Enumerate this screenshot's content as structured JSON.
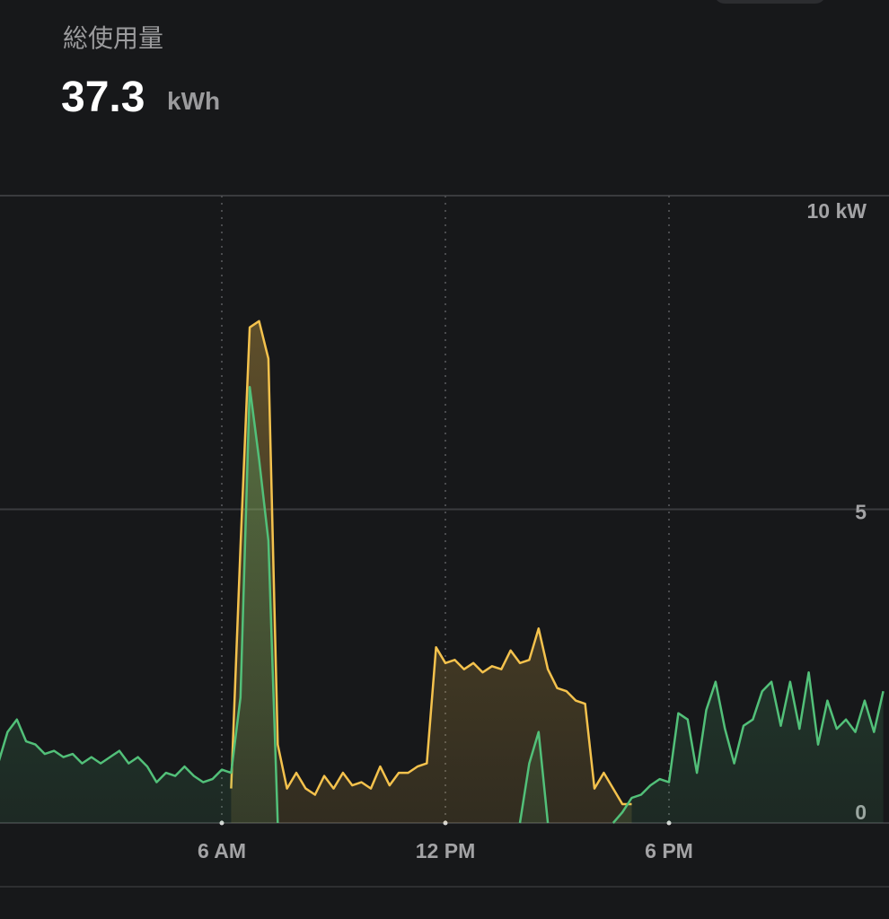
{
  "summary": {
    "label": "総使用量",
    "value": 37.3,
    "unit": "kWh"
  },
  "chart_data": {
    "type": "line",
    "area": true,
    "grid": true,
    "x": [
      0,
      0.25,
      0.5,
      0.75,
      1,
      1.25,
      1.5,
      1.75,
      2,
      2.25,
      2.5,
      2.75,
      3,
      3.25,
      3.5,
      3.75,
      4,
      4.25,
      4.5,
      4.75,
      5,
      5.25,
      5.5,
      5.75,
      6,
      6.25,
      6.5,
      6.75,
      7,
      7.25,
      7.5,
      7.75,
      8,
      8.25,
      8.5,
      8.75,
      9,
      9.25,
      9.5,
      9.75,
      10,
      10.25,
      10.5,
      10.75,
      11,
      11.25,
      11.5,
      11.75,
      12,
      12.25,
      12.5,
      12.75,
      13,
      13.25,
      13.5,
      13.75,
      14,
      14.25,
      14.5,
      14.75,
      15,
      15.25,
      15.5,
      15.75,
      16,
      16.25,
      16.5,
      16.75,
      17,
      17.25,
      17.5,
      17.75,
      18,
      18.25,
      18.5,
      18.75,
      19,
      19.25,
      19.5,
      19.75,
      20,
      20.25,
      20.5,
      20.75,
      21,
      21.25,
      21.5,
      21.75,
      22,
      22.25,
      22.5,
      22.75,
      23,
      23.25,
      23.5,
      23.75
    ],
    "xlim": [
      0,
      24
    ],
    "xticks": [
      {
        "value": 6,
        "label": "6 AM"
      },
      {
        "value": 12,
        "label": "12 PM"
      },
      {
        "value": 18,
        "label": "6 PM"
      }
    ],
    "ylim": [
      0,
      10
    ],
    "yticks": [
      0,
      5,
      {
        "value": 10,
        "label": "10 kW"
      }
    ],
    "series": [
      {
        "color": "#f4c24d",
        "values": [
          null,
          null,
          null,
          null,
          null,
          null,
          null,
          null,
          null,
          null,
          null,
          null,
          null,
          null,
          null,
          null,
          null,
          null,
          null,
          null,
          null,
          null,
          null,
          null,
          null,
          0.55,
          4.4,
          7.9,
          8.0,
          7.4,
          1.25,
          0.55,
          0.8,
          0.55,
          0.45,
          0.75,
          0.55,
          0.8,
          0.6,
          0.65,
          0.55,
          0.9,
          0.6,
          0.8,
          0.8,
          0.9,
          0.95,
          2.8,
          2.55,
          2.6,
          2.45,
          2.55,
          2.4,
          2.5,
          2.45,
          2.75,
          2.55,
          2.6,
          3.1,
          2.45,
          2.15,
          2.1,
          1.95,
          1.9,
          0.55,
          0.8,
          0.55,
          0.3,
          0.3,
          null,
          null,
          null,
          null,
          null,
          null,
          null,
          null,
          null,
          null,
          null,
          null,
          null,
          null,
          null,
          null,
          null,
          null,
          null,
          null,
          null,
          null,
          null,
          null,
          null,
          null,
          null
        ]
      },
      {
        "color": "#52c079",
        "values": [
          0.95,
          1.45,
          1.65,
          1.3,
          1.25,
          1.1,
          1.15,
          1.05,
          1.1,
          0.95,
          1.05,
          0.95,
          1.05,
          1.15,
          0.95,
          1.05,
          0.9,
          0.65,
          0.8,
          0.75,
          0.9,
          0.75,
          0.65,
          0.7,
          0.85,
          0.8,
          2.0,
          6.95,
          5.8,
          4.5,
          0,
          null,
          null,
          null,
          null,
          null,
          null,
          null,
          null,
          null,
          null,
          null,
          null,
          null,
          null,
          null,
          null,
          null,
          null,
          null,
          null,
          null,
          null,
          null,
          null,
          null,
          0,
          0.95,
          1.45,
          0,
          null,
          null,
          null,
          null,
          null,
          null,
          0,
          0.17,
          0.4,
          0.45,
          0.6,
          0.7,
          0.65,
          1.75,
          1.65,
          0.8,
          1.8,
          2.25,
          1.5,
          0.95,
          1.55,
          1.65,
          2.1,
          2.25,
          1.55,
          2.25,
          1.5,
          2.4,
          1.25,
          1.95,
          1.5,
          1.65,
          1.45,
          1.95,
          1.45,
          2.1
        ]
      }
    ]
  }
}
